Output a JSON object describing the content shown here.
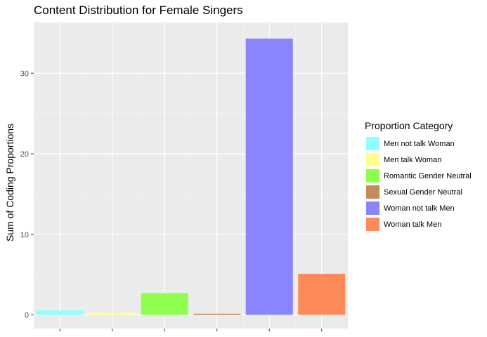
{
  "chart_data": {
    "type": "bar",
    "title": "Content Distribution for Female Singers",
    "xlabel": "",
    "ylabel": "Sum of Coding Proportions",
    "ylim": [
      -1.7,
      36.3
    ],
    "yticks": [
      0,
      10,
      20,
      30
    ],
    "grid": true,
    "legend_title": "Proportion Category",
    "legend_position": "right",
    "categories": [
      "Men not talk Woman",
      "Men talk Woman",
      "Romantic Gender Neutral",
      "Sexual Gender Neutral",
      "Woman not talk Men",
      "Woman talk Men"
    ],
    "values": [
      0.55,
      0.25,
      2.7,
      0.15,
      34.3,
      5.1
    ],
    "colors": [
      "#8FFFFF",
      "#FFFF8F",
      "#8FFF4F",
      "#C48A5A",
      "#8A85FF",
      "#FF8A59"
    ]
  }
}
